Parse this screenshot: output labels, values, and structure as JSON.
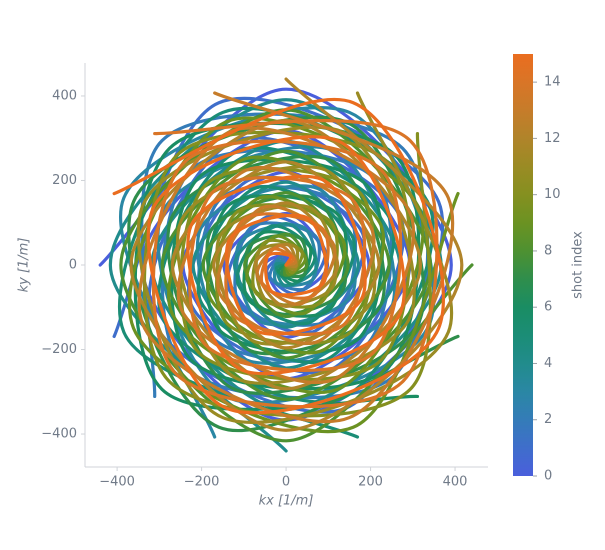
{
  "chart_data": {
    "type": "line",
    "xlabel": "kx [1/m]",
    "ylabel": "ky [1/m]",
    "colorbar_label": "shot index",
    "xlim": [
      -476,
      478
    ],
    "ylim": [
      -478,
      478
    ],
    "xticks": [
      {
        "value": -400,
        "label": "−400"
      },
      {
        "value": -200,
        "label": "−200"
      },
      0,
      200,
      400
    ],
    "yticks": [
      {
        "value": -400,
        "label": "−400"
      },
      {
        "value": -200,
        "label": "−200"
      },
      0,
      200,
      400
    ],
    "clim": [
      0,
      15
    ],
    "cticks": [
      0,
      2,
      4,
      6,
      8,
      10,
      12,
      14
    ],
    "series": [
      {
        "color": "#4a5fdc",
        "x": [
          0,
          0,
          -49,
          0,
          98,
          0,
          -147,
          0,
          196,
          0,
          -244,
          0,
          293,
          0,
          -342,
          0,
          391,
          0,
          -440
        ],
        "y": [
          0,
          24,
          0,
          -73,
          0,
          122,
          0,
          -171,
          0,
          220,
          0,
          -269,
          0,
          318,
          0,
          -367,
          0,
          416,
          0
        ]
      },
      {
        "color": "#3f6ecb",
        "x": [
          0,
          -9,
          -45,
          28,
          91,
          -47,
          -136,
          65,
          181,
          -84,
          -225,
          103,
          271,
          -122,
          -316,
          141,
          361,
          -159,
          -407
        ],
        "y": [
          0,
          22,
          -19,
          -67,
          38,
          113,
          -56,
          -158,
          75,
          203,
          -93,
          -249,
          112,
          294,
          -131,
          -339,
          150,
          384,
          -169
        ]
      },
      {
        "color": "#347cb8",
        "x": [
          0,
          -17,
          -35,
          52,
          69,
          -86,
          -104,
          121,
          139,
          -156,
          -173,
          190,
          207,
          -225,
          -242,
          259,
          276,
          -294,
          -311
        ],
        "y": [
          0,
          17,
          -35,
          -52,
          69,
          86,
          -104,
          -121,
          139,
          156,
          -173,
          -190,
          207,
          225,
          -242,
          -259,
          276,
          294,
          -311
        ]
      },
      {
        "color": "#2a87a4",
        "x": [
          0,
          -22,
          -19,
          67,
          38,
          -113,
          -56,
          158,
          75,
          -203,
          -93,
          249,
          112,
          -294,
          -131,
          339,
          150,
          -384,
          -169
        ],
        "y": [
          0,
          9,
          -45,
          -28,
          91,
          47,
          -136,
          -65,
          181,
          84,
          -225,
          -103,
          271,
          122,
          -316,
          -141,
          361,
          159,
          -407
        ]
      },
      {
        "color": "#218c8c",
        "x": [
          0,
          -24,
          0,
          73,
          0,
          -122,
          0,
          171,
          0,
          -220,
          0,
          269,
          0,
          -318,
          0,
          367,
          0,
          -416,
          0
        ],
        "y": [
          0,
          0,
          -49,
          0,
          98,
          0,
          -147,
          0,
          196,
          0,
          -244,
          0,
          293,
          0,
          -342,
          0,
          391,
          0,
          -440
        ]
      },
      {
        "color": "#1b8d76",
        "x": [
          0,
          -22,
          19,
          67,
          -38,
          -113,
          56,
          158,
          -75,
          -203,
          93,
          249,
          -112,
          -294,
          131,
          339,
          -150,
          -384,
          169
        ],
        "y": [
          0,
          -9,
          -45,
          28,
          91,
          -47,
          -136,
          65,
          181,
          -84,
          -225,
          103,
          271,
          -122,
          -316,
          141,
          361,
          -159,
          -407
        ]
      },
      {
        "color": "#1a8d63",
        "x": [
          0,
          -17,
          35,
          52,
          -69,
          -86,
          104,
          121,
          -139,
          -156,
          173,
          190,
          -207,
          -225,
          242,
          259,
          -276,
          -294,
          311
        ],
        "y": [
          0,
          -17,
          -35,
          52,
          69,
          -86,
          -104,
          121,
          139,
          -156,
          -173,
          190,
          207,
          -225,
          -242,
          259,
          276,
          -294,
          -311
        ]
      },
      {
        "color": "#2f8e4c",
        "x": [
          0,
          -9,
          45,
          28,
          -91,
          -47,
          136,
          65,
          -181,
          -84,
          225,
          103,
          -271,
          -122,
          316,
          141,
          -361,
          -159,
          407
        ],
        "y": [
          0,
          -22,
          -19,
          67,
          38,
          -113,
          -56,
          158,
          75,
          -203,
          -93,
          249,
          112,
          -294,
          -131,
          339,
          150,
          -384,
          -169
        ]
      },
      {
        "color": "#4e9131",
        "x": [
          0,
          0,
          49,
          0,
          -98,
          0,
          147,
          0,
          -196,
          0,
          244,
          0,
          -293,
          0,
          342,
          0,
          -391,
          0,
          440
        ],
        "y": [
          0,
          -24,
          0,
          73,
          0,
          -122,
          0,
          171,
          0,
          -220,
          0,
          269,
          0,
          -318,
          0,
          367,
          0,
          -416,
          0
        ]
      },
      {
        "color": "#6b9222",
        "x": [
          0,
          9,
          45,
          -28,
          -91,
          47,
          136,
          -65,
          -181,
          84,
          225,
          -103,
          -271,
          122,
          316,
          -141,
          -361,
          159,
          407
        ],
        "y": [
          0,
          -22,
          19,
          67,
          -38,
          -113,
          56,
          158,
          -75,
          -203,
          93,
          249,
          -112,
          -294,
          131,
          339,
          -150,
          -384,
          169
        ]
      },
      {
        "color": "#859020",
        "x": [
          0,
          17,
          35,
          -52,
          -69,
          86,
          104,
          -121,
          -139,
          156,
          173,
          -190,
          -207,
          225,
          242,
          -259,
          -276,
          294,
          311
        ],
        "y": [
          0,
          -17,
          35,
          52,
          -69,
          -86,
          104,
          121,
          -139,
          -156,
          173,
          190,
          -207,
          -225,
          242,
          259,
          -276,
          -294,
          311
        ]
      },
      {
        "color": "#9a8b24",
        "x": [
          0,
          22,
          19,
          -67,
          -38,
          113,
          56,
          -158,
          -75,
          203,
          93,
          -249,
          -112,
          294,
          131,
          -339,
          -150,
          384,
          169
        ],
        "y": [
          0,
          -9,
          45,
          28,
          -91,
          -47,
          136,
          65,
          -181,
          -84,
          225,
          103,
          -271,
          -122,
          316,
          141,
          -361,
          -159,
          407
        ]
      },
      {
        "color": "#b0842a",
        "x": [
          0,
          24,
          0,
          -73,
          0,
          122,
          0,
          -171,
          0,
          220,
          0,
          -269,
          0,
          318,
          0,
          -367,
          0,
          416,
          0
        ],
        "y": [
          0,
          0,
          49,
          0,
          -98,
          0,
          147,
          0,
          -196,
          0,
          244,
          0,
          -293,
          0,
          342,
          0,
          -391,
          0,
          440
        ]
      },
      {
        "color": "#c67c2a",
        "x": [
          0,
          22,
          -19,
          -67,
          38,
          113,
          -56,
          -158,
          75,
          203,
          -93,
          -249,
          112,
          294,
          -131,
          -339,
          150,
          384,
          -169
        ],
        "y": [
          0,
          9,
          45,
          -28,
          -91,
          47,
          136,
          -65,
          -181,
          84,
          225,
          -103,
          -271,
          122,
          316,
          -141,
          -361,
          159,
          407
        ]
      },
      {
        "color": "#d97527",
        "x": [
          0,
          17,
          -35,
          -52,
          69,
          86,
          -104,
          -121,
          139,
          156,
          -173,
          -190,
          207,
          225,
          -242,
          -259,
          276,
          294,
          -311
        ],
        "y": [
          0,
          17,
          35,
          -52,
          -69,
          86,
          104,
          -121,
          -139,
          156,
          173,
          -190,
          -207,
          225,
          242,
          -259,
          -276,
          294,
          311
        ]
      },
      {
        "color": "#ea6d1f",
        "x": [
          0,
          9,
          -45,
          -28,
          91,
          47,
          -136,
          -65,
          181,
          84,
          -225,
          -103,
          271,
          122,
          -316,
          -141,
          361,
          159,
          -407
        ],
        "y": [
          0,
          22,
          19,
          -67,
          -38,
          113,
          56,
          -158,
          -75,
          203,
          93,
          -249,
          -112,
          294,
          131,
          -339,
          -150,
          384,
          169
        ]
      }
    ]
  }
}
